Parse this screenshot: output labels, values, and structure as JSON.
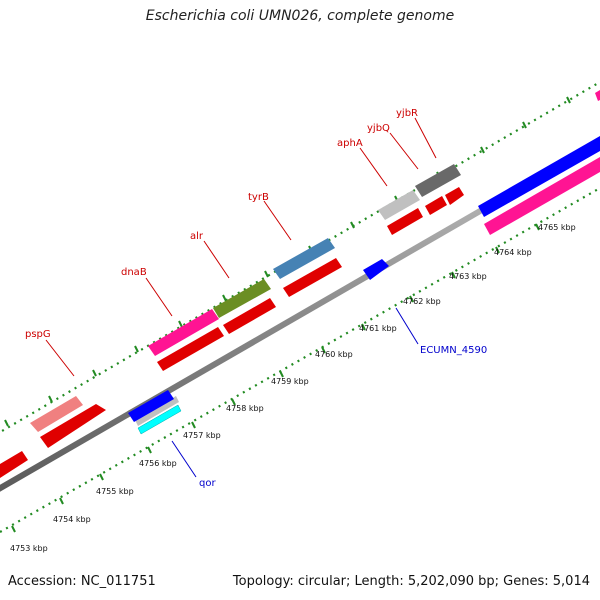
{
  "title": "Escherichia coli UMN026, complete genome",
  "footer": {
    "accession": "Accession: NC_011751",
    "summary": "Topology: circular; Length: 5,202,090 bp; Genes: 5,014"
  },
  "ruler": {
    "unit": "kbp",
    "ticks": [
      "4753 kbp",
      "4754 kbp",
      "4755 kbp",
      "4756 kbp",
      "4757 kbp",
      "4758 kbp",
      "4759 kbp",
      "4760 kbp",
      "4761 kbp",
      "4762 kbp",
      "4763 kbp",
      "4764 kbp",
      "4765 kbp"
    ]
  },
  "genes": {
    "forward_labels": [
      "pspG",
      "dnaB",
      "alr",
      "tyrB",
      "aphA",
      "yjbQ",
      "yjbR"
    ],
    "reverse_labels": [
      "qor",
      "ECUMN_4590"
    ]
  },
  "colors": {
    "label_forward": "#cc0000",
    "label_reverse": "#0000cc",
    "backbone": "#808080",
    "cds": "#ff0000",
    "pink": "#ff1493",
    "light_red": "#f08080",
    "olive": "#6b8e23",
    "steelblue": "#4682b4",
    "silver": "#c0c0c0",
    "dimgray": "#696969",
    "blue": "#0000ff",
    "cyan": "#00ffff",
    "tick": "#228b22"
  }
}
